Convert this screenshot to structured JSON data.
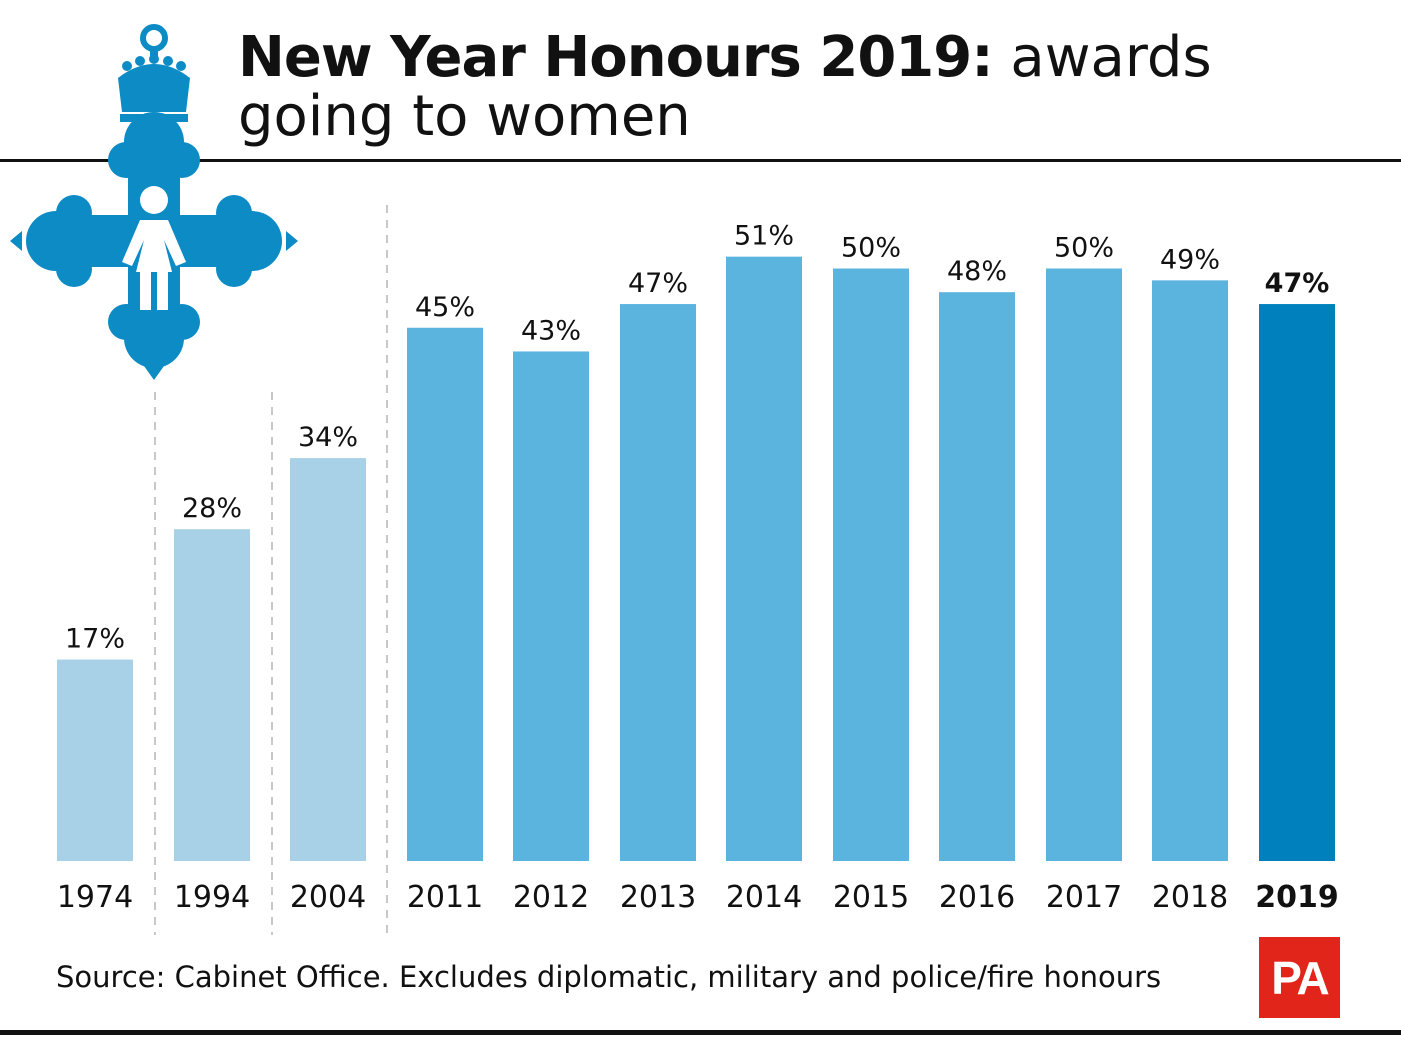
{
  "title": {
    "bold": "New Year Honours 2019:",
    "light": " awards going to women"
  },
  "source": "Source: Cabinet Office. Excludes diplomatic, military and police/fire honours",
  "logo": "PA",
  "colors": {
    "early": "#a8d0e6",
    "recent": "#5ab4de",
    "highlight": "#0081bd",
    "medal": "#0c8bc5"
  },
  "chart_data": {
    "type": "bar",
    "title": "New Year Honours 2019: awards going to women",
    "categories": [
      "1974",
      "1994",
      "2004",
      "2011",
      "2012",
      "2013",
      "2014",
      "2015",
      "2016",
      "2017",
      "2018",
      "2019"
    ],
    "values": [
      17,
      28,
      34,
      45,
      43,
      47,
      51,
      50,
      48,
      50,
      49,
      47
    ],
    "value_labels": [
      "17%",
      "28%",
      "34%",
      "45%",
      "43%",
      "47%",
      "51%",
      "50%",
      "48%",
      "50%",
      "49%",
      "47%"
    ],
    "unit": "%",
    "ylim": [
      0,
      100
    ],
    "grid": false,
    "legend": "none",
    "highlight_category": "2019",
    "group_breaks_after": [
      "1974",
      "1994",
      "2004"
    ]
  }
}
